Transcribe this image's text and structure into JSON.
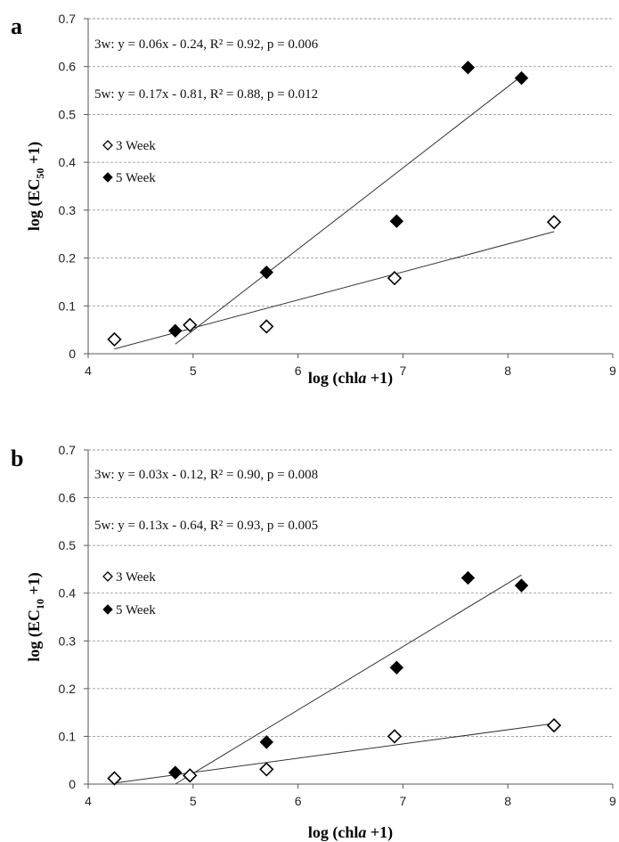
{
  "chart_data": [
    {
      "panel": "a",
      "type": "scatter",
      "xlabel": "log (chl",
      "xlabel_italic": "a",
      "xlabel_tail": " +1)",
      "ylabel": "log (EC",
      "ylabel_sub": "50",
      "ylabel_tail": " +1)",
      "xlim": [
        4,
        9
      ],
      "ylim": [
        0,
        0.7
      ],
      "xticks": [
        "4",
        "5",
        "6",
        "7",
        "8",
        "9"
      ],
      "yticks": [
        "0",
        "0.1",
        "0.2",
        "0.3",
        "0.4",
        "0.5",
        "0.6",
        "0.7"
      ],
      "grid": true,
      "equations": [
        "3w: y = 0.06x - 0.24, R² = 0.92, p = 0.006",
        "5w: y = 0.17x - 0.81, R² = 0.88, p = 0.012"
      ],
      "series": [
        {
          "name": "3 Week",
          "marker": "open-diamond",
          "points": [
            [
              4.25,
              0.03
            ],
            [
              4.97,
              0.06
            ],
            [
              5.7,
              0.057
            ],
            [
              6.92,
              0.158
            ],
            [
              8.44,
              0.275
            ]
          ],
          "fit": [
            [
              4.25,
              0.01
            ],
            [
              8.44,
              0.255
            ]
          ]
        },
        {
          "name": "5 Week",
          "marker": "filled-diamond",
          "points": [
            [
              4.83,
              0.048
            ],
            [
              5.7,
              0.17
            ],
            [
              6.94,
              0.277
            ],
            [
              7.62,
              0.598
            ],
            [
              8.13,
              0.576
            ]
          ],
          "fit": [
            [
              4.83,
              0.02
            ],
            [
              8.13,
              0.58
            ]
          ]
        }
      ]
    },
    {
      "panel": "b",
      "type": "scatter",
      "xlabel": "log (chl",
      "xlabel_italic": "a",
      "xlabel_tail": " +1)",
      "ylabel": "log (EC",
      "ylabel_sub": "10",
      "ylabel_tail": " +1)",
      "xlim": [
        4,
        9
      ],
      "ylim": [
        0,
        0.7
      ],
      "xticks": [
        "4",
        "5",
        "6",
        "7",
        "8",
        "9"
      ],
      "yticks": [
        "0",
        "0.1",
        "0.2",
        "0.3",
        "0.4",
        "0.5",
        "0.6",
        "0.7"
      ],
      "grid": true,
      "equations": [
        "3w: y = 0.03x - 0.12, R² = 0.90, p = 0.008",
        "5w: y = 0.13x - 0.64, R² = 0.93, p = 0.005"
      ],
      "series": [
        {
          "name": "3 Week",
          "marker": "open-diamond",
          "points": [
            [
              4.25,
              0.012
            ],
            [
              4.97,
              0.018
            ],
            [
              5.7,
              0.031
            ],
            [
              6.92,
              0.1
            ],
            [
              8.44,
              0.123
            ]
          ],
          "fit": [
            [
              4.25,
              0.002
            ],
            [
              8.44,
              0.127
            ]
          ]
        },
        {
          "name": "5 Week",
          "marker": "filled-diamond",
          "points": [
            [
              4.83,
              0.024
            ],
            [
              5.7,
              0.088
            ],
            [
              6.94,
              0.244
            ],
            [
              7.62,
              0.432
            ],
            [
              8.13,
              0.416
            ]
          ],
          "fit": [
            [
              4.83,
              0.0
            ],
            [
              8.13,
              0.438
            ]
          ]
        }
      ]
    }
  ]
}
